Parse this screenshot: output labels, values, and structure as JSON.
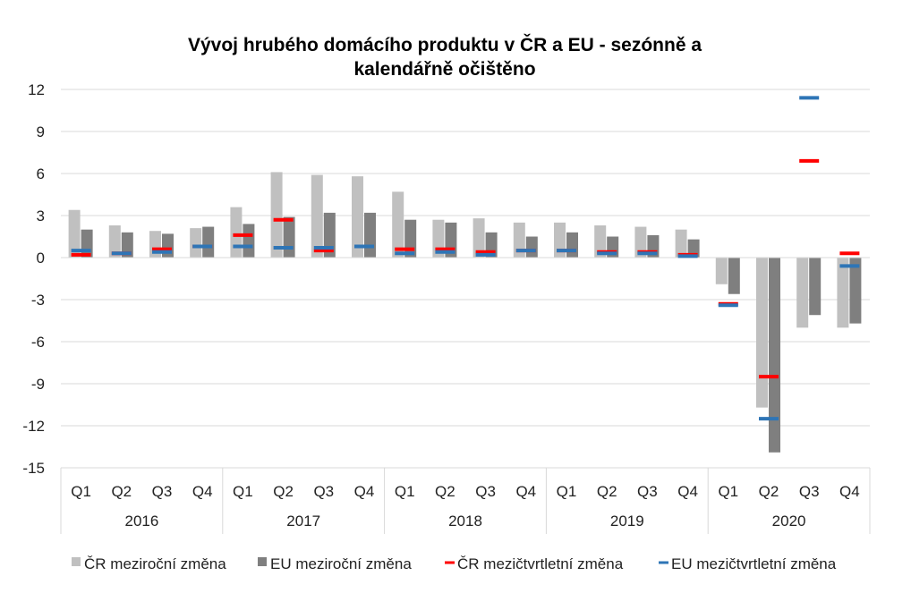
{
  "chart_data": {
    "type": "bar",
    "title_lines": [
      "Vývoj hrubého domácího produktu v ČR a EU - sezónně a",
      "kalendářně očištěno"
    ],
    "quarters": [
      "Q1",
      "Q2",
      "Q3",
      "Q4",
      "Q1",
      "Q2",
      "Q3",
      "Q4",
      "Q1",
      "Q2",
      "Q3",
      "Q4",
      "Q1",
      "Q2",
      "Q3",
      "Q4",
      "Q1",
      "Q2",
      "Q3",
      "Q4"
    ],
    "years": [
      "2016",
      "2017",
      "2018",
      "2019",
      "2020"
    ],
    "ylim": [
      -15,
      12
    ],
    "yticks": [
      12,
      9,
      6,
      3,
      0,
      -3,
      -6,
      -9,
      -12,
      -15
    ],
    "grid": true,
    "legend_position": "bottom",
    "series": [
      {
        "name": "ČR meziroční změna",
        "kind": "bar",
        "color": "#c0c0c0",
        "values": [
          3.4,
          2.3,
          1.9,
          2.1,
          3.6,
          6.1,
          5.9,
          5.8,
          4.7,
          2.7,
          2.8,
          2.5,
          2.5,
          2.3,
          2.2,
          2.0,
          -1.9,
          -10.7,
          -5.0,
          -5.0
        ]
      },
      {
        "name": "EU meziroční změna",
        "kind": "bar",
        "color": "#7f7f7f",
        "values": [
          2.0,
          1.8,
          1.7,
          2.2,
          2.4,
          2.9,
          3.2,
          3.2,
          2.7,
          2.5,
          1.8,
          1.5,
          1.8,
          1.5,
          1.6,
          1.3,
          -2.6,
          -13.9,
          -4.1,
          -4.7
        ]
      },
      {
        "name": "ČR mezičtvrtletní změna",
        "kind": "marker",
        "color": "#ff0000",
        "values": [
          0.2,
          0.3,
          0.6,
          0.8,
          1.6,
          2.7,
          0.5,
          0.8,
          0.6,
          0.6,
          0.4,
          0.5,
          0.5,
          0.4,
          0.4,
          0.2,
          -3.3,
          -8.5,
          6.9,
          0.3
        ]
      },
      {
        "name": "EU mezičtvrtletní změna",
        "kind": "marker",
        "color": "#2e75b6",
        "values": [
          0.5,
          0.3,
          0.4,
          0.8,
          0.8,
          0.7,
          0.7,
          0.8,
          0.3,
          0.4,
          0.2,
          0.5,
          0.5,
          0.3,
          0.3,
          0.1,
          -3.4,
          -11.5,
          11.4,
          -0.6
        ]
      }
    ]
  }
}
